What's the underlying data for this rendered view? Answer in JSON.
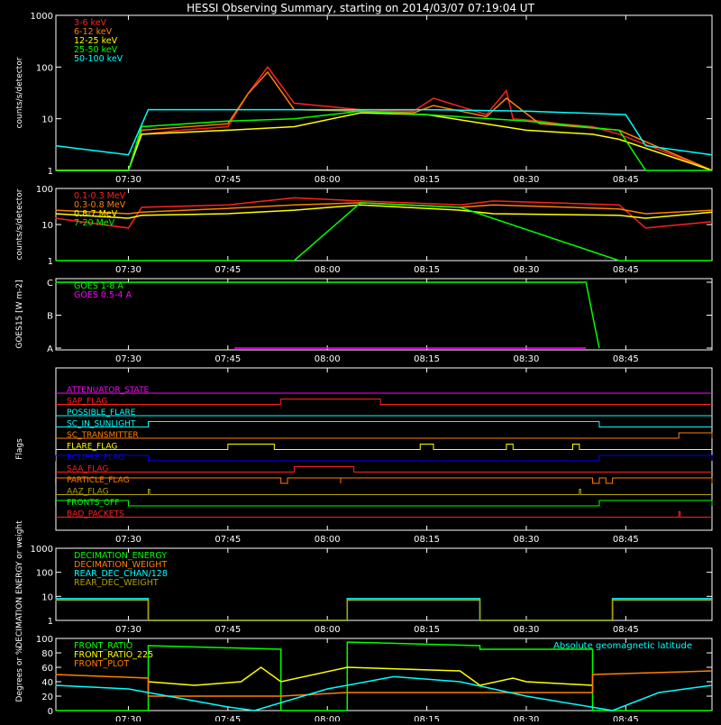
{
  "title": "HESSI Observing Summary, starting on 2014/03/07 07:19:04 UT",
  "colors": {
    "bg": "#000000",
    "fg": "#ffffff",
    "red": "#ff2020",
    "orange": "#ff8000",
    "yellow": "#ffff00",
    "green": "#00ff00",
    "cyan": "#00ffff",
    "magenta": "#ff00ff",
    "blue": "#0000ff",
    "olive": "#b0a000",
    "brightorange": "#ff8c00"
  },
  "chart_data": [
    {
      "id": "counts-low",
      "type": "line",
      "ylabel": "counts/s/detector",
      "yscale": "log",
      "ylim": [
        1,
        1000
      ],
      "yticks": [
        "1",
        "10",
        "100",
        "1000"
      ],
      "xlim": [
        "07:19:04",
        "08:58"
      ],
      "xticks": [
        "07:30",
        "07:45",
        "08:00",
        "08:15",
        "08:30",
        "08:45"
      ],
      "series": [
        {
          "name": "3-6 keV",
          "color": "#ff2020",
          "x": [
            "07:19",
            "07:30",
            "07:32",
            "07:38",
            "07:45",
            "07:48",
            "07:51",
            "07:55",
            "08:05",
            "08:13",
            "08:16",
            "08:24",
            "08:27",
            "08:28",
            "08:32",
            "08:35",
            "08:40",
            "08:44",
            "08:58"
          ],
          "y": [
            0,
            0,
            5,
            6,
            7,
            30,
            100,
            20,
            15,
            14,
            25,
            12,
            35,
            10,
            9,
            8,
            7,
            5,
            0
          ]
        },
        {
          "name": "6-12 keV",
          "color": "#ff8000",
          "x": [
            "07:19",
            "07:30",
            "07:32",
            "07:45",
            "07:48",
            "07:51",
            "07:55",
            "08:05",
            "08:13",
            "08:16",
            "08:24",
            "08:27",
            "08:32",
            "08:44",
            "08:58"
          ],
          "y": [
            0,
            0,
            6,
            8,
            30,
            80,
            15,
            14,
            13,
            18,
            11,
            25,
            8,
            6,
            0
          ]
        },
        {
          "name": "12-25 keV",
          "color": "#ffff00",
          "x": [
            "07:19",
            "07:30",
            "07:32",
            "07:45",
            "07:55",
            "08:05",
            "08:15",
            "08:30",
            "08:40",
            "08:44",
            "08:58"
          ],
          "y": [
            0,
            0,
            5,
            6,
            7,
            13,
            12,
            6,
            5,
            4,
            0
          ]
        },
        {
          "name": "25-50 keV",
          "color": "#00ff00",
          "x": [
            "07:19",
            "07:30",
            "07:32",
            "07:45",
            "07:55",
            "08:05",
            "08:15",
            "08:30",
            "08:44",
            "08:48",
            "08:58"
          ],
          "y": [
            1,
            1,
            7,
            9,
            10,
            14,
            12,
            9,
            6,
            1,
            1
          ]
        },
        {
          "name": "50-100 keV",
          "color": "#00ffff",
          "x": [
            "07:19",
            "07:30",
            "07:33",
            "07:45",
            "07:55",
            "08:05",
            "08:15",
            "08:30",
            "08:45",
            "08:48",
            "08:58"
          ],
          "y": [
            3,
            2,
            15,
            15,
            15,
            15,
            15,
            14,
            12,
            3,
            2
          ]
        }
      ]
    },
    {
      "id": "counts-high",
      "type": "line",
      "ylabel": "counts/s/detector",
      "yscale": "log",
      "ylim": [
        1,
        100
      ],
      "yticks": [
        "1",
        "10",
        "100"
      ],
      "xlim": [
        "07:19:04",
        "08:58"
      ],
      "xticks": [
        "07:30",
        "07:45",
        "08:00",
        "08:15",
        "08:30",
        "08:45"
      ],
      "series": [
        {
          "name": "0.1-0.3 MeV",
          "color": "#ff2020",
          "x": [
            "07:19",
            "07:30",
            "07:32",
            "07:45",
            "07:55",
            "08:05",
            "08:20",
            "08:25",
            "08:44",
            "08:48",
            "08:58"
          ],
          "y": [
            15,
            8,
            30,
            35,
            55,
            45,
            35,
            45,
            35,
            8,
            12
          ]
        },
        {
          "name": "0.3-0.8 MeV",
          "color": "#ff8000",
          "x": [
            "07:19",
            "07:30",
            "07:32",
            "07:45",
            "07:55",
            "08:05",
            "08:20",
            "08:25",
            "08:44",
            "08:48",
            "08:58"
          ],
          "y": [
            25,
            20,
            22,
            28,
            35,
            40,
            30,
            35,
            27,
            20,
            25
          ]
        },
        {
          "name": "0.8-7 MeV",
          "color": "#ffff00",
          "x": [
            "07:19",
            "07:30",
            "07:32",
            "07:45",
            "07:55",
            "08:05",
            "08:20",
            "08:25",
            "08:44",
            "08:48",
            "08:58"
          ],
          "y": [
            20,
            15,
            18,
            20,
            25,
            35,
            25,
            20,
            18,
            15,
            22
          ]
        },
        {
          "name": "7-20 MeV",
          "color": "#00ff00",
          "x": [
            "07:19",
            "07:55",
            "08:05",
            "08:20",
            "08:44",
            "08:58"
          ],
          "y": [
            1,
            1,
            40,
            30,
            1,
            1
          ]
        }
      ]
    },
    {
      "id": "goes",
      "type": "line",
      "ylabel": "GOES15 [W m-2]",
      "yticks": [
        "A",
        "B",
        "C"
      ],
      "xlim": [
        "07:19:04",
        "08:58"
      ],
      "xticks": [
        "07:30",
        "07:45",
        "08:00",
        "08:15",
        "08:30",
        "08:45"
      ],
      "series": [
        {
          "name": "GOES 1-8 A",
          "color": "#00ff00",
          "x": [
            "07:19",
            "07:45",
            "08:00",
            "08:15",
            "08:30",
            "08:39",
            "08:40",
            "08:41"
          ],
          "y": [
            "C",
            "C",
            "C",
            "C",
            "C",
            "C",
            "B",
            "A"
          ]
        },
        {
          "name": "GOES 0.5-4 A",
          "color": "#ff00ff",
          "x": [
            "07:46",
            "07:48",
            "07:50",
            "08:37",
            "08:39"
          ],
          "y": [
            "A",
            "A",
            "A",
            "A",
            "A"
          ]
        }
      ]
    },
    {
      "id": "flags",
      "type": "line",
      "ylabel": "Flags",
      "xlim": [
        "07:19:04",
        "08:58"
      ],
      "xticks": [
        "07:30",
        "07:45",
        "08:00",
        "08:15",
        "08:30",
        "08:45"
      ],
      "series": [
        {
          "name": "ATTENUATOR_STATE",
          "color": "#ff00ff",
          "on": []
        },
        {
          "name": "SAP_FLAG",
          "color": "#ff2020",
          "on": [
            [
              "07:53",
              "08:08"
            ]
          ]
        },
        {
          "name": "POSSIBLE_FLARE",
          "color": "#00ffff",
          "on": []
        },
        {
          "name": "SC_IN_SUNLIGHT",
          "color": "#00ffff",
          "on": [
            [
              "07:33",
              "08:41"
            ]
          ]
        },
        {
          "name": "SC_TRANSMITTER",
          "color": "#ff8000",
          "on": [
            [
              "08:53",
              "08:58"
            ]
          ]
        },
        {
          "name": "FLARE_FLAG",
          "color": "#ffff00",
          "on": [
            [
              "07:45",
              "07:52"
            ],
            [
              "08:14",
              "08:16"
            ],
            [
              "08:27",
              "08:28"
            ],
            [
              "08:37",
              "08:38"
            ]
          ]
        },
        {
          "name": "ECLIPSE_FLAG",
          "color": "#0000ff",
          "on": [
            [
              "07:19",
              "07:33"
            ],
            [
              "08:41",
              "08:58"
            ]
          ]
        },
        {
          "name": "SAA_FLAG",
          "color": "#ff2020",
          "on": [
            [
              "07:55",
              "08:04"
            ]
          ]
        },
        {
          "name": "PARTICLE_FLAG",
          "color": "#ff8000",
          "on": [
            [
              "07:19",
              "07:53"
            ],
            [
              "07:54",
              "08:02"
            ],
            [
              "08:02",
              "08:40"
            ],
            [
              "08:41",
              "08:42"
            ],
            [
              "08:43",
              "08:58"
            ]
          ]
        },
        {
          "name": "AAZ_FLAG",
          "color": "#b0a000",
          "on": [
            [
              "07:33",
              "07:33"
            ],
            [
              "08:38",
              "08:38"
            ]
          ]
        },
        {
          "name": "FRONTS_OFF",
          "color": "#00ff00",
          "on": [
            [
              "07:19",
              "07:30"
            ],
            [
              "08:41",
              "08:58"
            ]
          ]
        },
        {
          "name": "BAD_PACKETS",
          "color": "#ff2020",
          "on": [
            [
              "08:53",
              "08:53"
            ]
          ]
        }
      ]
    },
    {
      "id": "decimation",
      "type": "line",
      "ylabel": "DECIMATION ENERGY or weight",
      "yscale": "log",
      "ylim": [
        1,
        1000
      ],
      "yticks": [
        "1",
        "10",
        "100",
        "1000"
      ],
      "xlim": [
        "07:19:04",
        "08:58"
      ],
      "xticks": [
        "07:30",
        "07:45",
        "08:00",
        "08:15",
        "08:30",
        "08:45"
      ],
      "series": [
        {
          "name": "DECIMATION_ENERGY",
          "color": "#00ff00",
          "x": [],
          "y": []
        },
        {
          "name": "DECIMATION_WEIGHT",
          "color": "#ff8000",
          "x": [],
          "y": []
        },
        {
          "name": "REAR_DEC_CHAN/128",
          "color": "#00ffff",
          "x": [
            "07:19",
            "07:33",
            "07:33",
            "08:03",
            "08:03",
            "08:23",
            "08:23",
            "08:43",
            "08:43",
            "08:58"
          ],
          "y": [
            8,
            8,
            1,
            1,
            8,
            8,
            1,
            1,
            8,
            8
          ]
        },
        {
          "name": "REAR_DEC_WEIGHT",
          "color": "#b0a000",
          "x": [
            "07:19",
            "07:33",
            "07:33",
            "08:03",
            "08:03",
            "08:23",
            "08:23",
            "08:43",
            "08:43",
            "08:58"
          ],
          "y": [
            7,
            7,
            1,
            1,
            7,
            7,
            1,
            1,
            7,
            7
          ]
        }
      ]
    },
    {
      "id": "lattitude",
      "type": "line",
      "ylabel": "Degrees or %",
      "ylim": [
        0,
        100
      ],
      "yticks": [
        "0",
        "20",
        "40",
        "60",
        "80",
        "100"
      ],
      "xlim": [
        "07:19:04",
        "08:58"
      ],
      "xticks": [
        "07:30",
        "07:45",
        "08:00",
        "08:15",
        "08:30",
        "08:45"
      ],
      "annotation": "Absolute geomagnetic latitude",
      "series": [
        {
          "name": "FRONT_RATIO",
          "color": "#00ff00",
          "x": [
            "07:19",
            "07:33",
            "07:33",
            "07:53",
            "07:53",
            "08:03",
            "08:03",
            "08:23",
            "08:23",
            "08:40",
            "08:40",
            "08:58"
          ],
          "y": [
            0,
            0,
            90,
            85,
            0,
            0,
            95,
            90,
            85,
            85,
            0,
            0
          ]
        },
        {
          "name": "FRONT_RATIO_225",
          "color": "#ffff00",
          "x": [
            "07:33",
            "07:40",
            "07:47",
            "07:50",
            "07:53",
            "08:03",
            "08:20",
            "08:23",
            "08:28",
            "08:30",
            "08:40"
          ],
          "y": [
            40,
            35,
            40,
            60,
            40,
            60,
            55,
            35,
            45,
            40,
            35
          ]
        },
        {
          "name": "FRONT_PLOT",
          "color": "#ff8000",
          "x": [
            "07:19",
            "07:33",
            "07:33",
            "07:53",
            "08:03",
            "08:23",
            "08:40",
            "08:40",
            "08:58"
          ],
          "y": [
            50,
            45,
            20,
            20,
            25,
            25,
            25,
            50,
            55
          ]
        },
        {
          "name": "Absolute geomagnetic latitude",
          "color": "#00ffff",
          "x": [
            "07:19",
            "07:30",
            "07:45",
            "07:49",
            "08:00",
            "08:10",
            "08:20",
            "08:30",
            "08:43",
            "08:50",
            "08:58"
          ],
          "y": [
            35,
            30,
            5,
            0,
            30,
            47,
            40,
            20,
            0,
            25,
            35
          ]
        }
      ]
    }
  ]
}
